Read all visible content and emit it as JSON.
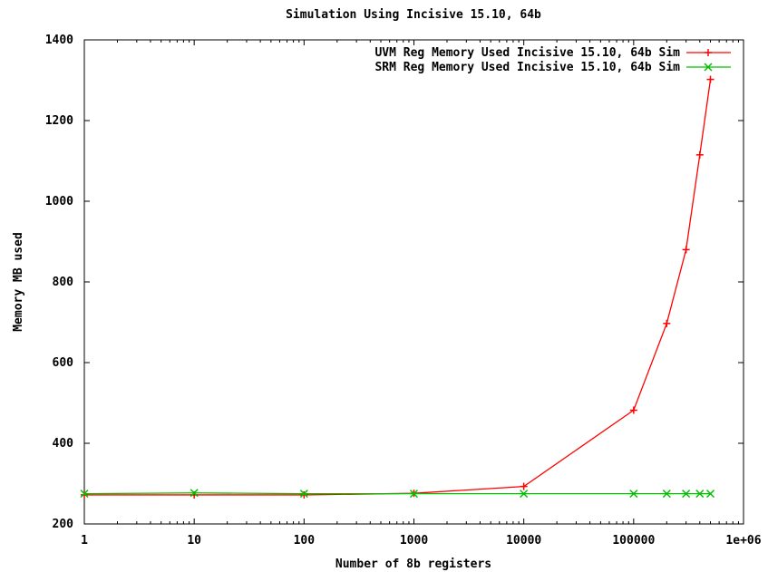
{
  "chart_data": {
    "type": "line",
    "title": "Simulation Using Incisive 15.10, 64b",
    "xlabel": "Number of 8b  registers",
    "ylabel": "Memory MB used",
    "x_scale": "log",
    "xlim": [
      1,
      1000000
    ],
    "ylim": [
      200,
      1400
    ],
    "x_ticks": [
      1,
      10,
      100,
      1000,
      10000,
      100000,
      1000000
    ],
    "x_tick_labels": [
      "1",
      "10",
      "100",
      "1000",
      "10000",
      "100000",
      "1e+06"
    ],
    "y_ticks": [
      200,
      400,
      600,
      800,
      1000,
      1200,
      1400
    ],
    "y_tick_labels": [
      "200",
      "400",
      "600",
      "800",
      "1000",
      "1200",
      "1400"
    ],
    "grid": false,
    "legend_position": "top-right",
    "series": [
      {
        "name": "UVM Reg Memory Used Incisive 15.10, 64b Sim",
        "color": "#ff0000",
        "marker": "plus",
        "x": [
          1,
          10,
          100,
          1000,
          10000,
          100000,
          200000,
          300000,
          400000,
          500000
        ],
        "y": [
          272,
          272,
          272,
          276,
          293,
          482,
          697,
          880,
          1115,
          1302
        ]
      },
      {
        "name": "SRM Reg Memory Used Incisive 15.10, 64b Sim",
        "color": "#00c000",
        "marker": "cross",
        "x": [
          1,
          10,
          100,
          1000,
          10000,
          100000,
          200000,
          300000,
          400000,
          500000
        ],
        "y": [
          275,
          277,
          275,
          275,
          275,
          275,
          275,
          275,
          275,
          275
        ]
      }
    ]
  }
}
